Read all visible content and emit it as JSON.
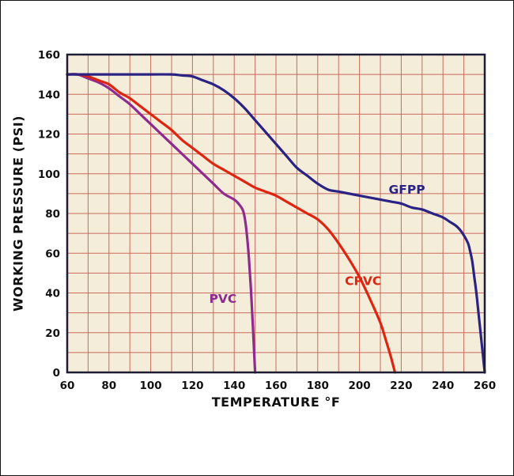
{
  "chart_data": {
    "type": "line",
    "title": "",
    "xlabel": "TEMPERATURE °F",
    "ylabel": "WORKING PRESSURE (PSI)",
    "xlim": [
      60,
      260
    ],
    "ylim": [
      0,
      160
    ],
    "xticks": [
      60,
      80,
      100,
      120,
      140,
      160,
      180,
      200,
      220,
      240,
      260
    ],
    "yticks": [
      0,
      20,
      40,
      60,
      80,
      100,
      120,
      140,
      160
    ],
    "grid": {
      "on": true,
      "minor_step_x": 10,
      "minor_step_y": 10,
      "color": "#c96a5c"
    },
    "plot_bg": "#f4edda",
    "border_color": "#1c1c34",
    "tick_color": "#111111",
    "legend_position": "inline-labels",
    "series": [
      {
        "name": "PVC",
        "color": "#8e2b8e",
        "label_pos": [
          128,
          35
        ],
        "points": [
          [
            60,
            150
          ],
          [
            65,
            150
          ],
          [
            70,
            148
          ],
          [
            75,
            146
          ],
          [
            80,
            143
          ],
          [
            85,
            139
          ],
          [
            90,
            135
          ],
          [
            95,
            130
          ],
          [
            100,
            125
          ],
          [
            105,
            120
          ],
          [
            110,
            115
          ],
          [
            115,
            110
          ],
          [
            120,
            105
          ],
          [
            125,
            100
          ],
          [
            130,
            95
          ],
          [
            135,
            90
          ],
          [
            140,
            87
          ],
          [
            142,
            85
          ],
          [
            144,
            82
          ],
          [
            145,
            78
          ],
          [
            146,
            70
          ],
          [
            147,
            58
          ],
          [
            148,
            42
          ],
          [
            149,
            22
          ],
          [
            150,
            0
          ]
        ]
      },
      {
        "name": "CPVC",
        "color": "#dd2512",
        "label_pos": [
          193,
          44
        ],
        "points": [
          [
            60,
            150
          ],
          [
            65,
            150
          ],
          [
            70,
            149
          ],
          [
            75,
            147
          ],
          [
            80,
            145
          ],
          [
            85,
            141
          ],
          [
            90,
            138
          ],
          [
            95,
            134
          ],
          [
            100,
            130
          ],
          [
            105,
            126
          ],
          [
            110,
            122
          ],
          [
            115,
            117
          ],
          [
            120,
            113
          ],
          [
            125,
            109
          ],
          [
            130,
            105
          ],
          [
            135,
            102
          ],
          [
            140,
            99
          ],
          [
            145,
            96
          ],
          [
            150,
            93
          ],
          [
            155,
            91
          ],
          [
            160,
            89
          ],
          [
            165,
            86
          ],
          [
            170,
            83
          ],
          [
            175,
            80
          ],
          [
            180,
            77
          ],
          [
            185,
            72
          ],
          [
            190,
            65
          ],
          [
            195,
            57
          ],
          [
            200,
            48
          ],
          [
            205,
            37
          ],
          [
            210,
            25
          ],
          [
            213,
            15
          ],
          [
            215,
            8
          ],
          [
            217,
            0
          ]
        ]
      },
      {
        "name": "GFPP",
        "color": "#2b2383",
        "label_pos": [
          214,
          90
        ],
        "points": [
          [
            60,
            150
          ],
          [
            70,
            150
          ],
          [
            80,
            150
          ],
          [
            90,
            150
          ],
          [
            100,
            150
          ],
          [
            110,
            150
          ],
          [
            115,
            149.5
          ],
          [
            120,
            149
          ],
          [
            125,
            147
          ],
          [
            130,
            145
          ],
          [
            135,
            142
          ],
          [
            140,
            138
          ],
          [
            145,
            133
          ],
          [
            150,
            127
          ],
          [
            155,
            121
          ],
          [
            160,
            115
          ],
          [
            165,
            109
          ],
          [
            170,
            103
          ],
          [
            175,
            99
          ],
          [
            180,
            95
          ],
          [
            185,
            92
          ],
          [
            190,
            91
          ],
          [
            195,
            90
          ],
          [
            200,
            89
          ],
          [
            205,
            88
          ],
          [
            210,
            87
          ],
          [
            215,
            86
          ],
          [
            220,
            85
          ],
          [
            225,
            83
          ],
          [
            230,
            82
          ],
          [
            235,
            80
          ],
          [
            240,
            78
          ],
          [
            243,
            76
          ],
          [
            246,
            74
          ],
          [
            248,
            72
          ],
          [
            250,
            69
          ],
          [
            252,
            65
          ],
          [
            253,
            61
          ],
          [
            254,
            56
          ],
          [
            255,
            48
          ],
          [
            256,
            40
          ],
          [
            257,
            30
          ],
          [
            258,
            20
          ],
          [
            259,
            10
          ],
          [
            260,
            0
          ]
        ]
      }
    ]
  }
}
